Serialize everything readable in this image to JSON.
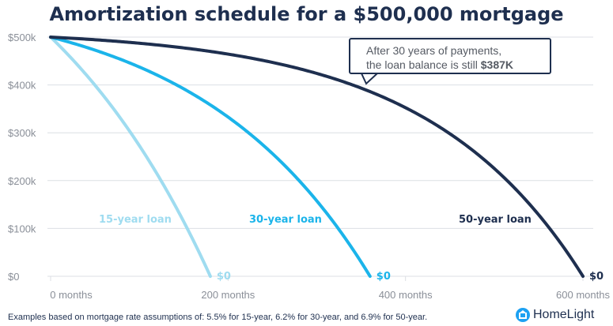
{
  "chart_data": {
    "type": "line",
    "title": "Amortization schedule for a $500,000 mortgage",
    "x_axis": {
      "min": 0,
      "max": 600,
      "ticks": [
        0,
        200,
        400,
        600
      ],
      "tick_labels": [
        "0 months",
        "200 months",
        "400 months",
        "600 months"
      ]
    },
    "y_axis": {
      "min": 0,
      "max": 500000,
      "ticks": [
        0,
        100000,
        200000,
        300000,
        400000,
        500000
      ],
      "tick_labels": [
        "$0",
        "$100k",
        "$200k",
        "$300k",
        "$400k",
        "$500k"
      ]
    },
    "grid": "horizontal",
    "series": [
      {
        "name": "15-year loan",
        "color": "#9fdcf0",
        "months": 180,
        "rate": 0.055,
        "end_label": "$0"
      },
      {
        "name": "30-year loan",
        "color": "#1bb4ea",
        "months": 360,
        "rate": 0.062,
        "end_label": "$0"
      },
      {
        "name": "50-year loan",
        "color": "#1e2f4f",
        "months": 600,
        "rate": 0.069,
        "end_label": "$0"
      }
    ],
    "annotation": {
      "line1": "After 30 years of payments,",
      "line2_prefix": "the loan balance is still ",
      "line2_value": "$387K"
    }
  },
  "footnote": "Examples based on mortgage rate assumptions of: 5.5% for 15-year, 6.2% for 30-year, and 6.9% for 50-year.",
  "brand": {
    "name": "HomeLight",
    "icon": "house-icon"
  }
}
